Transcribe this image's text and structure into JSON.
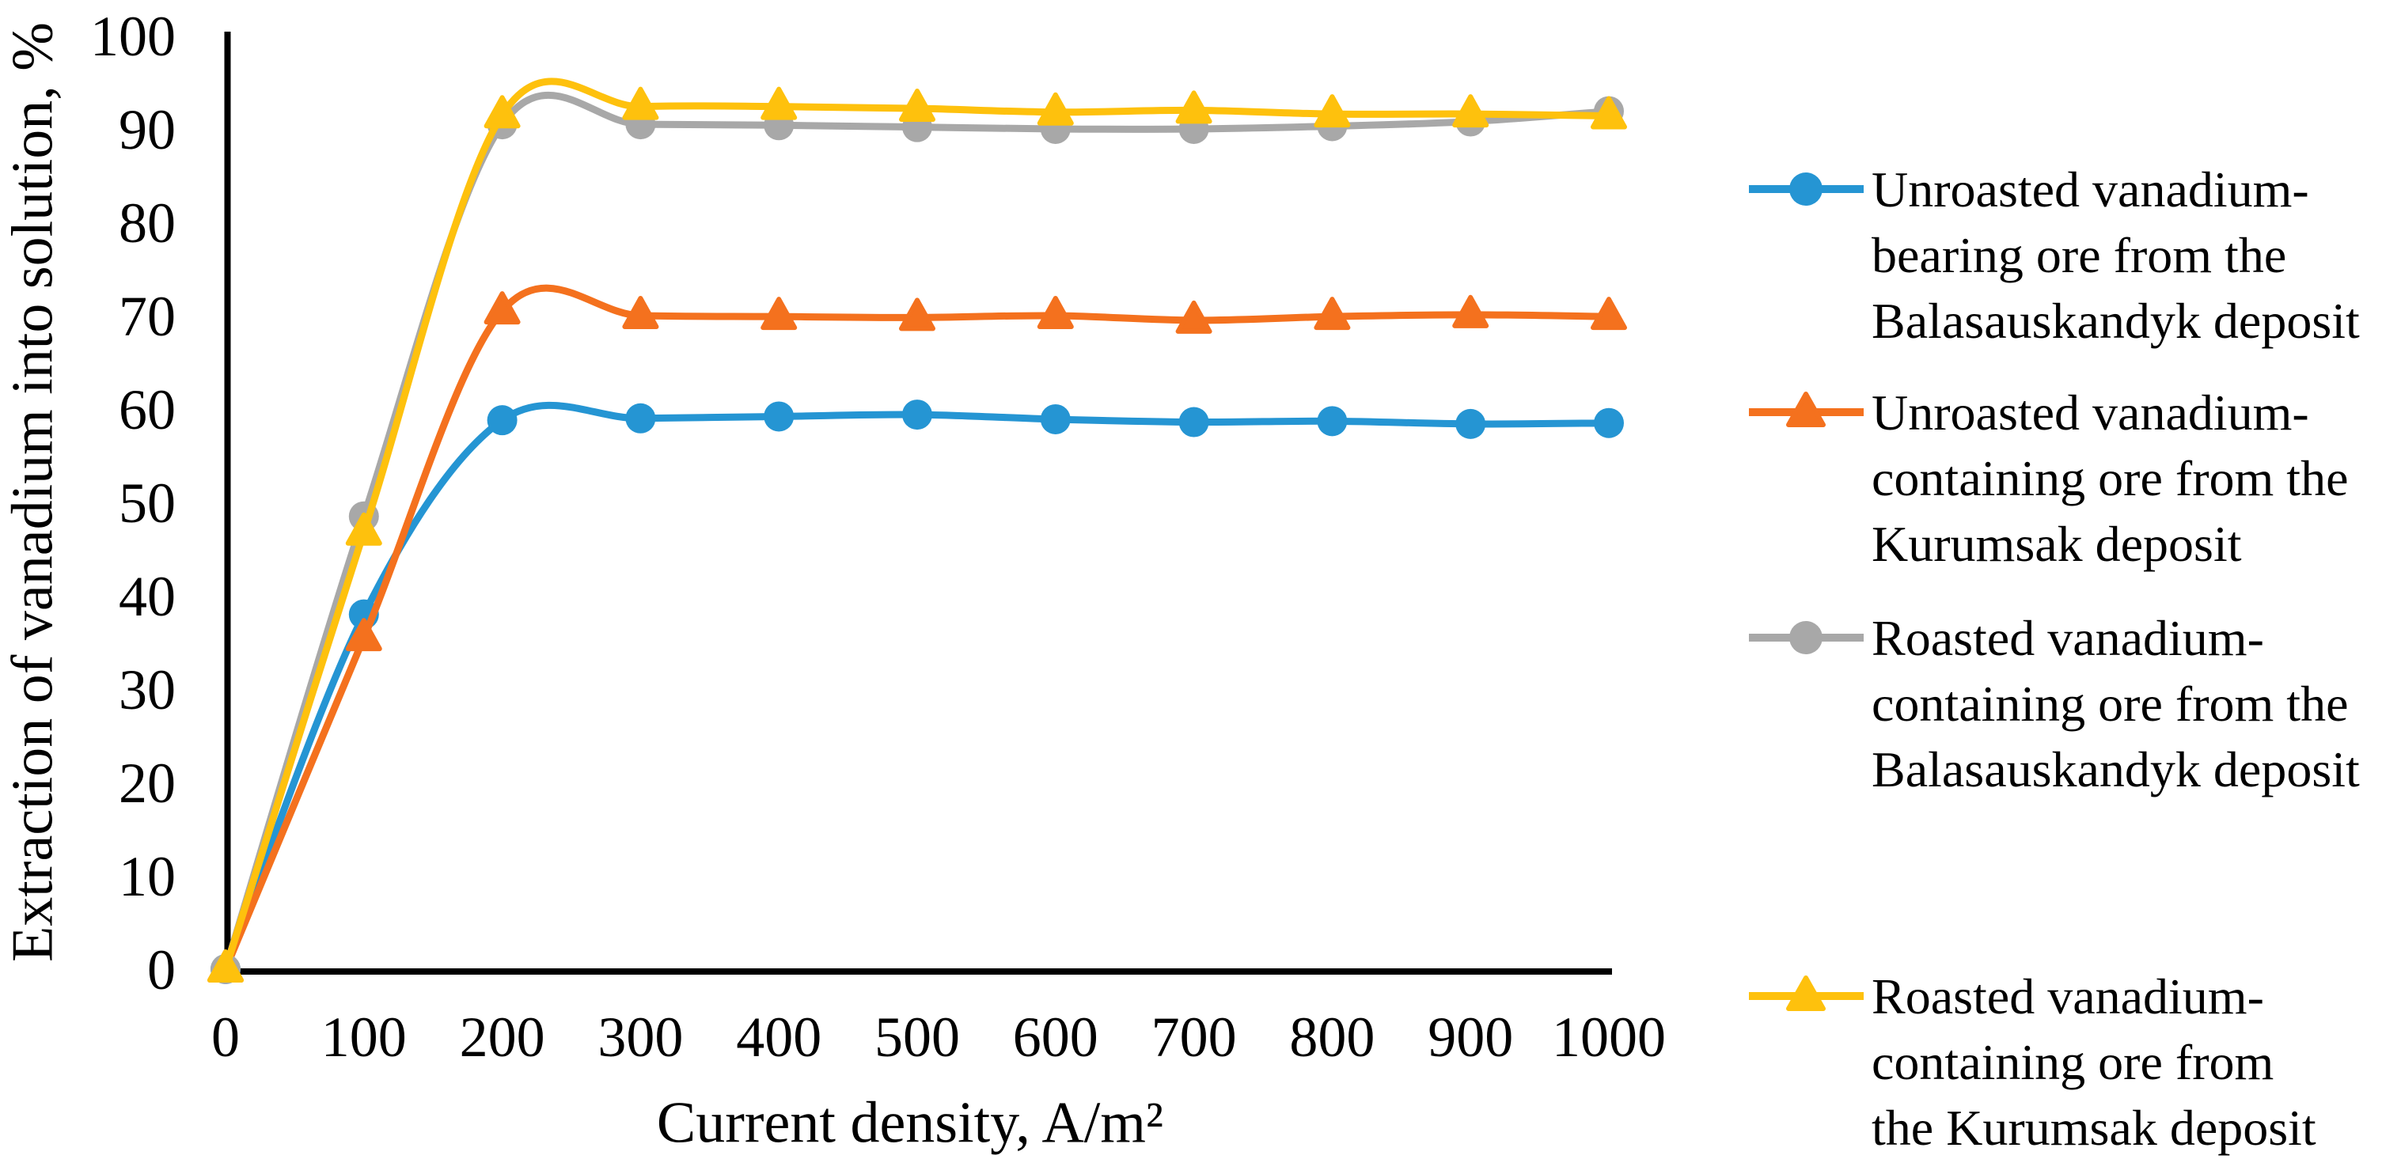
{
  "figure": {
    "background": "#FFFFFF",
    "axis_color": "#000000",
    "text_color": "#000000"
  },
  "chart_data": {
    "type": "line",
    "smooth": true,
    "title": "",
    "xlabel": "Current density, A/m²",
    "ylabel": "Extraction of vanadium into solution, %",
    "x": [
      0,
      100,
      200,
      300,
      400,
      500,
      600,
      700,
      800,
      900,
      1000
    ],
    "xlim": [
      0,
      1000
    ],
    "ylim": [
      0,
      100
    ],
    "y_tick_step": 10,
    "grid": false,
    "legend_position": "right",
    "series": [
      {
        "name": "Unroasted vanadium-bearing ore from the Balasauskandyk deposit",
        "label_lines": [
          "Unroasted vanadium-",
          "bearing ore from the",
          "Balasauskandyk deposit"
        ],
        "color": "#2595D3",
        "marker": "circle",
        "values": [
          0,
          38,
          58.8,
          59,
          59.2,
          59.4,
          58.9,
          58.6,
          58.7,
          58.4,
          58.5
        ]
      },
      {
        "name": "Unroasted vanadium-containing ore from the Kurumsak deposit",
        "label_lines": [
          "Unroasted vanadium-",
          "containing ore from the",
          "Kurumsak deposit"
        ],
        "color": "#F4711E",
        "marker": "triangle",
        "values": [
          0,
          35.5,
          70.5,
          70,
          69.9,
          69.8,
          70,
          69.5,
          69.9,
          70.1,
          69.9
        ]
      },
      {
        "name": "Roasted vanadium-containing ore from the Balasauskandyk deposit",
        "label_lines": [
          "Roasted vanadium-",
          "containing ore from the",
          "Balasauskandyk deposit"
        ],
        "color": "#A8A8A8",
        "marker": "circle",
        "values": [
          0,
          48.5,
          90.5,
          90.5,
          90.4,
          90.2,
          90,
          90,
          90.3,
          90.8,
          91.9
        ]
      },
      {
        "name": "Roasted vanadium-containing ore from the Kurumsak deposit",
        "label_lines": [
          "Roasted vanadium-",
          "containing ore from",
          "the Kurumsak deposit"
        ],
        "color": "#FEC10D",
        "marker": "triangle",
        "values": [
          0,
          46.8,
          91.5,
          92.4,
          92.4,
          92.2,
          91.8,
          92,
          91.6,
          91.6,
          91.4
        ]
      }
    ]
  }
}
